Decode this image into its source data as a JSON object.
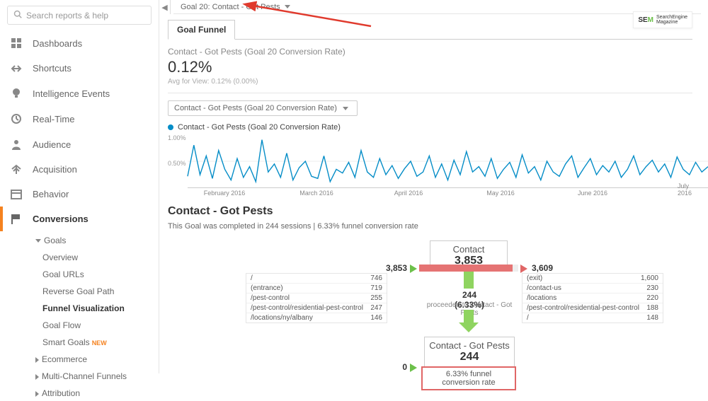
{
  "search": {
    "placeholder": "Search reports & help"
  },
  "sidebar": {
    "items": [
      {
        "label": "Dashboards"
      },
      {
        "label": "Shortcuts"
      },
      {
        "label": "Intelligence Events"
      },
      {
        "label": "Real-Time"
      },
      {
        "label": "Audience"
      },
      {
        "label": "Acquisition"
      },
      {
        "label": "Behavior"
      },
      {
        "label": "Conversions"
      }
    ],
    "goals_group": "Goals",
    "goals": [
      {
        "label": "Overview"
      },
      {
        "label": "Goal URLs"
      },
      {
        "label": "Reverse Goal Path"
      },
      {
        "label": "Funnel Visualization"
      },
      {
        "label": "Goal Flow"
      },
      {
        "label": "Smart Goals",
        "new": true
      }
    ],
    "other_groups": [
      "Ecommerce",
      "Multi-Channel Funnels",
      "Attribution"
    ]
  },
  "goal_selector": "Goal 20: Contact - Got Pests",
  "tab": "Goal Funnel",
  "summary": {
    "title": "Contact - Got Pests (Goal 20 Conversion Rate)",
    "value": "0.12%",
    "sub": "Avg for View: 0.12% (0.00%)"
  },
  "metric_select": "Contact - Got Pests (Goal 20 Conversion Rate)",
  "legend": "Contact - Got Pests (Goal 20 Conversion Rate)",
  "chart": {
    "color": "#058dc7",
    "ylabs": [
      "1.00%",
      "0.50%"
    ],
    "xlabs": [
      "February 2016",
      "March 2016",
      "April 2016",
      "May 2016",
      "June 2016",
      "July 2016"
    ],
    "points": [
      0.22,
      0.8,
      0.25,
      0.6,
      0.18,
      0.7,
      0.35,
      0.15,
      0.55,
      0.2,
      0.4,
      0.12,
      0.9,
      0.3,
      0.45,
      0.2,
      0.65,
      0.15,
      0.38,
      0.5,
      0.22,
      0.18,
      0.6,
      0.12,
      0.35,
      0.28,
      0.48,
      0.2,
      0.7,
      0.3,
      0.2,
      0.55,
      0.25,
      0.42,
      0.18,
      0.36,
      0.5,
      0.22,
      0.3,
      0.6,
      0.2,
      0.45,
      0.15,
      0.52,
      0.25,
      0.68,
      0.3,
      0.4,
      0.22,
      0.55,
      0.18,
      0.35,
      0.48,
      0.2,
      0.62,
      0.28,
      0.4,
      0.15,
      0.5,
      0.3,
      0.22,
      0.45,
      0.6,
      0.2,
      0.38,
      0.55,
      0.25,
      0.42,
      0.3,
      0.5,
      0.2,
      0.35,
      0.6,
      0.25,
      0.4,
      0.52,
      0.3,
      0.45,
      0.2,
      0.58,
      0.35,
      0.25,
      0.48,
      0.3,
      0.4
    ]
  },
  "section": {
    "title": "Contact - Got Pests",
    "sub": "This Goal was completed in 244 sessions | 6.33% funnel conversion rate"
  },
  "funnel": {
    "step1": {
      "title": "Contact",
      "value": "3,853",
      "in": "3,853",
      "out": "3,609",
      "bar_fill": "#e57373"
    },
    "proceed": {
      "count": "244 (6.33%)",
      "text": "proceeded to Contact - Got Pests"
    },
    "left_table": [
      {
        "path": "/",
        "n": "746"
      },
      {
        "path": "(entrance)",
        "n": "719"
      },
      {
        "path": "/pest-control",
        "n": "255"
      },
      {
        "path": "/pest-control/residential-pest-control",
        "n": "247"
      },
      {
        "path": "/locations/ny/albany",
        "n": "146"
      }
    ],
    "right_table": [
      {
        "path": "(exit)",
        "n": "1,600"
      },
      {
        "path": "/contact-us",
        "n": "230"
      },
      {
        "path": "/locations",
        "n": "220"
      },
      {
        "path": "/pest-control/residential-pest-control",
        "n": "188"
      },
      {
        "path": "/",
        "n": "148"
      }
    ],
    "step2": {
      "title": "Contact - Got Pests",
      "value": "244",
      "in": "0"
    },
    "rate_box": "6.33% funnel conversion rate"
  },
  "sem": {
    "logo_prefix": "SE",
    "logo_m": "M",
    "text": "SearchEngine\nMagazine"
  }
}
